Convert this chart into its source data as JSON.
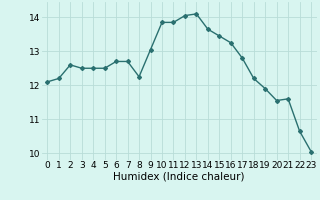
{
  "x": [
    0,
    1,
    2,
    3,
    4,
    5,
    6,
    7,
    8,
    9,
    10,
    11,
    12,
    13,
    14,
    15,
    16,
    17,
    18,
    19,
    20,
    21,
    22,
    23
  ],
  "y": [
    12.1,
    12.2,
    12.6,
    12.5,
    12.5,
    12.5,
    12.7,
    12.7,
    12.25,
    13.05,
    13.85,
    13.85,
    14.05,
    14.1,
    13.65,
    13.45,
    13.25,
    12.8,
    12.2,
    11.9,
    11.55,
    11.6,
    10.65,
    10.05
  ],
  "line_color": "#2a7070",
  "marker": "D",
  "marker_size": 2.0,
  "bg_color": "#d8f5f0",
  "grid_color": "#b8ddd8",
  "xlabel": "Humidex (Indice chaleur)",
  "xlabel_fontsize": 7.5,
  "ylim": [
    9.8,
    14.45
  ],
  "xlim": [
    -0.5,
    23.5
  ],
  "yticks": [
    10,
    11,
    12,
    13,
    14
  ],
  "xticks": [
    0,
    1,
    2,
    3,
    4,
    5,
    6,
    7,
    8,
    9,
    10,
    11,
    12,
    13,
    14,
    15,
    16,
    17,
    18,
    19,
    20,
    21,
    22,
    23
  ],
  "tick_fontsize": 6.5,
  "linewidth": 1.0
}
